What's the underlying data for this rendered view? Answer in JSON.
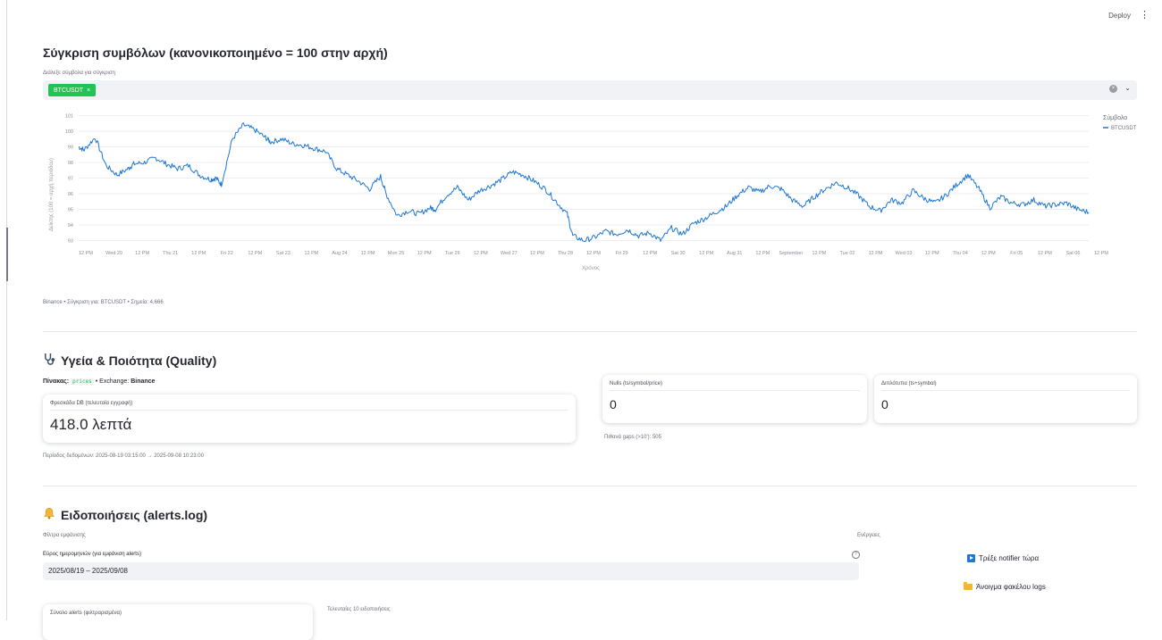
{
  "header": {
    "deploy_label": "Deploy",
    "menu_icon": "kebab-menu-icon"
  },
  "compare": {
    "title": "Σύγκριση συμβόλων (κανονικοποιημένο = 100 στην αρχή)",
    "select_label": "Διάλεξε σύμβολα για σύγκριση",
    "selected": [
      {
        "label": "BTCUSDT"
      }
    ],
    "caption": "Binance • Σύγκριση για: BTCUSDT • Σημεία: 4,666"
  },
  "chart_data": {
    "type": "line",
    "ylabel": "Δείκτης (100 = αρχή περιόδου)",
    "xlabel": "Χρόνος",
    "legend_title": "Σύμβολο",
    "legend_placement": "right",
    "y_ticks": [
      93,
      94,
      95,
      96,
      97,
      98,
      99,
      100,
      101
    ],
    "ylim": [
      92.8,
      101.2
    ],
    "x_tick_labels": [
      "12 PM",
      "Wed 20",
      "12 PM",
      "Thu 21",
      "12 PM",
      "Fri 22",
      "12 PM",
      "Sat 23",
      "12 PM",
      "Aug 24",
      "12 PM",
      "Mon 25",
      "12 PM",
      "Tue 26",
      "12 PM",
      "Wed 27",
      "12 PM",
      "Thu 28",
      "12 PM",
      "Fri 29",
      "12 PM",
      "Sat 30",
      "12 PM",
      "Aug 31",
      "12 PM",
      "September",
      "12 PM",
      "Tue 02",
      "12 PM",
      "Wed 03",
      "12 PM",
      "Thu 04",
      "12 PM",
      "Fri 05",
      "12 PM",
      "Sat 06",
      "12 PM"
    ],
    "series": [
      {
        "name": "BTCUSDT",
        "color": "#1f77d4",
        "x": [
          0,
          0.2,
          0.6,
          1.0,
          1.4,
          1.8,
          2.0,
          2.4,
          2.8,
          3.2,
          3.6,
          4.0,
          4.4,
          4.8,
          5.0,
          5.2,
          5.6,
          6.0,
          6.4,
          6.8,
          7.0,
          7.4,
          7.8,
          8.2,
          8.6,
          9.0,
          9.4,
          9.8,
          10.2,
          10.6,
          11.0,
          11.2,
          11.6,
          12.0,
          12.4,
          12.8,
          13.0,
          13.4,
          13.8,
          14.2,
          14.6,
          15.0,
          15.4,
          15.8,
          16.2,
          16.6,
          17.0,
          17.4,
          17.8,
          18.0,
          18.4,
          18.8,
          19.2,
          19.6,
          20.0,
          20.4,
          20.8,
          21.2,
          21.6,
          22.0,
          22.4,
          22.8,
          23.2,
          23.6,
          24.0,
          24.4,
          24.8,
          25.2,
          25.6,
          26.0,
          26.4,
          26.8,
          27.2,
          27.6,
          28.0,
          28.4,
          28.8,
          29.2,
          29.6,
          30.0,
          30.4,
          30.8,
          31.2,
          31.6,
          32.0,
          32.4,
          32.8,
          33.2,
          33.6,
          34.0,
          34.4,
          34.8,
          35.2,
          35.6,
          36.0,
          36.4,
          36.8
        ],
        "values": [
          99.0,
          98.8,
          99.6,
          97.8,
          97.2,
          97.6,
          97.9,
          98.0,
          98.3,
          97.9,
          97.6,
          97.8,
          97.2,
          96.9,
          97.0,
          96.6,
          99.5,
          100.4,
          100.1,
          99.6,
          99.3,
          99.5,
          99.2,
          99.1,
          98.9,
          98.7,
          97.6,
          97.2,
          96.8,
          96.3,
          97.1,
          96.0,
          94.6,
          94.9,
          94.7,
          95.1,
          95.0,
          95.9,
          96.4,
          95.6,
          96.2,
          96.5,
          96.9,
          97.4,
          97.2,
          96.8,
          96.3,
          95.5,
          94.7,
          93.3,
          93.0,
          93.2,
          93.6,
          93.4,
          93.7,
          93.3,
          93.5,
          93.0,
          93.8,
          93.4,
          94.1,
          94.4,
          94.8,
          95.2,
          95.9,
          96.4,
          96.1,
          96.5,
          96.3,
          95.6,
          95.2,
          95.8,
          96.3,
          96.7,
          96.4,
          95.9,
          95.2,
          94.9,
          95.6,
          95.4,
          96.2,
          95.7,
          95.4,
          95.9,
          96.6,
          97.2,
          96.3,
          95.1,
          95.8,
          95.4,
          95.3,
          95.6,
          95.2,
          95.3,
          95.4,
          95.0,
          94.8
        ]
      }
    ]
  },
  "quality": {
    "title": "Υγεία & Ποιότητα (Quality)",
    "table_label": "Πίνακας:",
    "table_value": "prices",
    "exchange_label": "• Exchange:",
    "exchange_value": "Binance",
    "freshness": {
      "label": "Φρεσκάδα DB (τελευταία εγγραφή)",
      "value": "418.0 λεπτά"
    },
    "nulls": {
      "label": "Nulls (ts/symbol/price)",
      "value": "0"
    },
    "duplicates": {
      "label": "Διπλότυπα (ts+symbol)",
      "value": "0"
    },
    "gaps_text": "Πιθανά gaps (>10'): 505",
    "period_text": "Περίοδος δεδομένων: 2025-08-19 03:15:00 → 2025-09-08 10:23:00"
  },
  "alerts": {
    "title": "Ειδοποιήσεις (alerts.log)",
    "filters_label": "Φίλτρα εμφάνισης",
    "date_range_label": "Εύρος ημερομηνιών (για εμφάνιση alerts)",
    "date_range_value": "2025/08/19 – 2025/09/08",
    "actions_label": "Ενέργειες",
    "run_notifier_label": "Τρέξε notifier τώρα",
    "open_logs_label": "Άνοιγμα φακέλου logs",
    "total_card_label": "Σύνολο alerts (φιλτραρισμένα)",
    "last_alerts_label": "Τελευταίες 10 ειδοποιήσεις"
  }
}
